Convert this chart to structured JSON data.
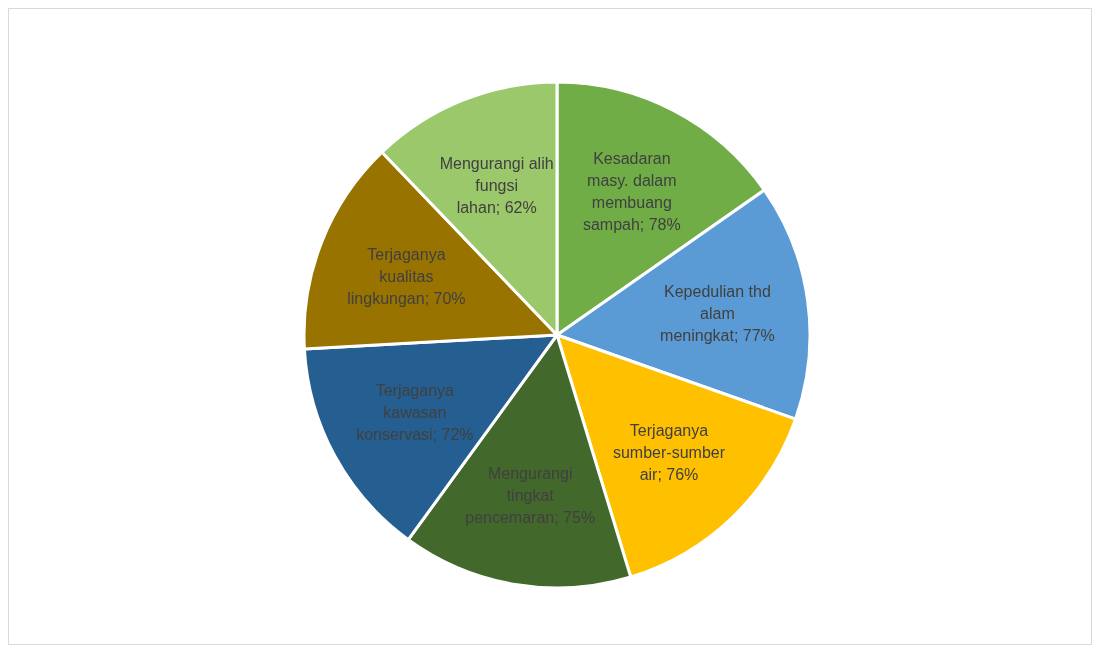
{
  "chart_data": {
    "type": "pie",
    "categories": [
      "Kesadaran masy. dalam membuang sampah",
      "Kepedulian thd alam meningkat",
      "Terjaganya sumber-sumber air",
      "Mengurangi tingkat pencemaran",
      "Terjaganya kawasan konservasi",
      "Terjaganya kualitas lingkungan",
      "Mengurangi alih fungsi lahan"
    ],
    "values": [
      78,
      77,
      76,
      75,
      72,
      70,
      62
    ],
    "value_labels": [
      "78%",
      "77%",
      "76%",
      "75%",
      "72%",
      "70%",
      "62%"
    ],
    "colors": [
      "#70ad47",
      "#5b9bd5",
      "#ffc000",
      "#43682b",
      "#255e91",
      "#997300",
      "#9bc86b"
    ]
  }
}
